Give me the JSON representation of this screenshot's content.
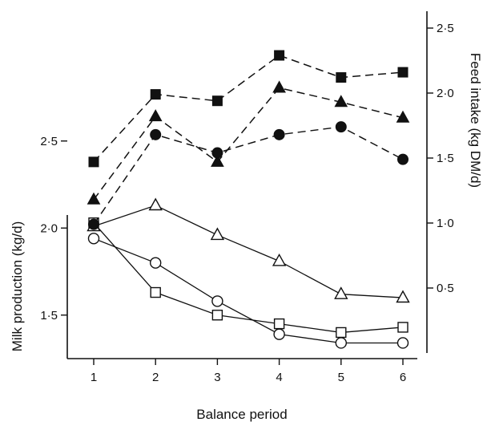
{
  "chart_data": {
    "type": "line",
    "xlabel": "Balance period",
    "x": [
      1,
      2,
      3,
      4,
      5,
      6
    ],
    "x_ticks": [
      "1",
      "2",
      "3",
      "4",
      "5",
      "6"
    ],
    "left_axis": {
      "label": "Milk production (kg/d)",
      "ylim": [
        1.25,
        2.75
      ],
      "ticks": [
        1.5,
        2.0,
        2.5
      ],
      "tick_labels": [
        "1·5",
        "2·0",
        "2·5"
      ]
    },
    "right_axis": {
      "label": "Feed intake (kg DM/d)",
      "ylim": [
        0.0,
        2.85
      ],
      "ticks": [
        0.5,
        1.0,
        1.5,
        2.0,
        2.5
      ],
      "tick_labels": [
        "0·5",
        "1·0",
        "1·5",
        "2·0",
        "2·5"
      ]
    },
    "grid": false,
    "series": [
      {
        "axis": "left",
        "marker": "open-triangle",
        "line": "solid",
        "values": [
          2.01,
          2.13,
          1.96,
          1.81,
          1.62,
          1.6
        ]
      },
      {
        "axis": "left",
        "marker": "open-circle",
        "line": "solid",
        "values": [
          1.94,
          1.8,
          1.58,
          1.39,
          1.34,
          1.34
        ]
      },
      {
        "axis": "left",
        "marker": "open-square",
        "line": "solid",
        "values": [
          2.03,
          1.63,
          1.5,
          1.45,
          1.4,
          1.43
        ]
      },
      {
        "axis": "right",
        "marker": "filled-square",
        "line": "dashed",
        "values": [
          1.47,
          1.99,
          1.94,
          2.29,
          2.12,
          2.16
        ]
      },
      {
        "axis": "right",
        "marker": "filled-triangle",
        "line": "dashed",
        "values": [
          1.18,
          1.82,
          1.47,
          2.04,
          1.93,
          1.81
        ]
      },
      {
        "axis": "right",
        "marker": "filled-circle",
        "line": "dashed",
        "values": [
          0.99,
          1.68,
          1.54,
          1.68,
          1.74,
          1.49
        ]
      }
    ],
    "colors": {
      "ink": "#111111",
      "background": "#ffffff"
    }
  }
}
